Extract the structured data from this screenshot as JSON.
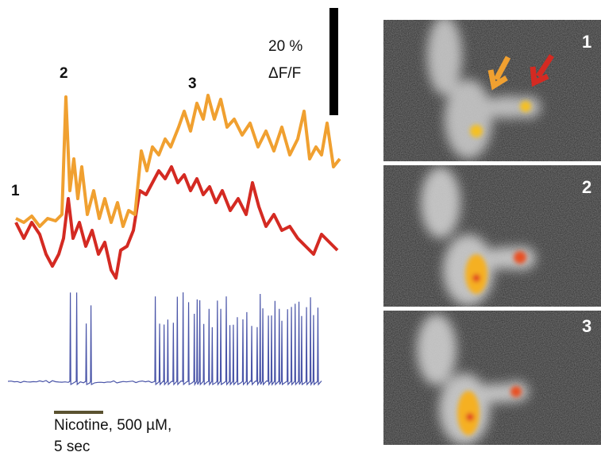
{
  "trace_labels": [
    "1",
    "2",
    "3"
  ],
  "scale_bar": {
    "value": "20 %",
    "unit": "ΔF/F"
  },
  "stimulus": {
    "line1": "Nicotine, 500 µM,",
    "line2": "5 sec"
  },
  "panels": [
    {
      "label": "1"
    },
    {
      "label": "2"
    },
    {
      "label": "3"
    }
  ]
}
